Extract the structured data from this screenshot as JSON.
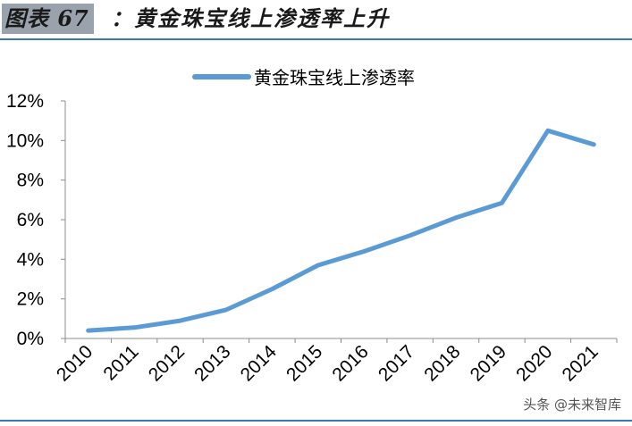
{
  "figure": {
    "label": "图表 67",
    "title": "：黄金珠宝线上渗透率上升"
  },
  "watermark": "头条 @未来智库",
  "chart_data": {
    "type": "line",
    "title": "",
    "xlabel": "",
    "ylabel": "",
    "x": [
      "2010",
      "2011",
      "2012",
      "2013",
      "2014",
      "2015",
      "2016",
      "2017",
      "2018",
      "2019",
      "2020",
      "2021"
    ],
    "series": [
      {
        "name": "黄金珠宝线上渗透率",
        "values": [
          0.004,
          0.0055,
          0.009,
          0.0145,
          0.025,
          0.037,
          0.044,
          0.052,
          0.061,
          0.0685,
          0.105,
          0.098
        ],
        "color": "#5b9bd5"
      }
    ],
    "ylim": [
      0,
      0.12
    ],
    "yticks": [
      "0%",
      "2%",
      "4%",
      "6%",
      "8%",
      "10%",
      "12%"
    ],
    "grid": false,
    "legend": "top-center"
  }
}
